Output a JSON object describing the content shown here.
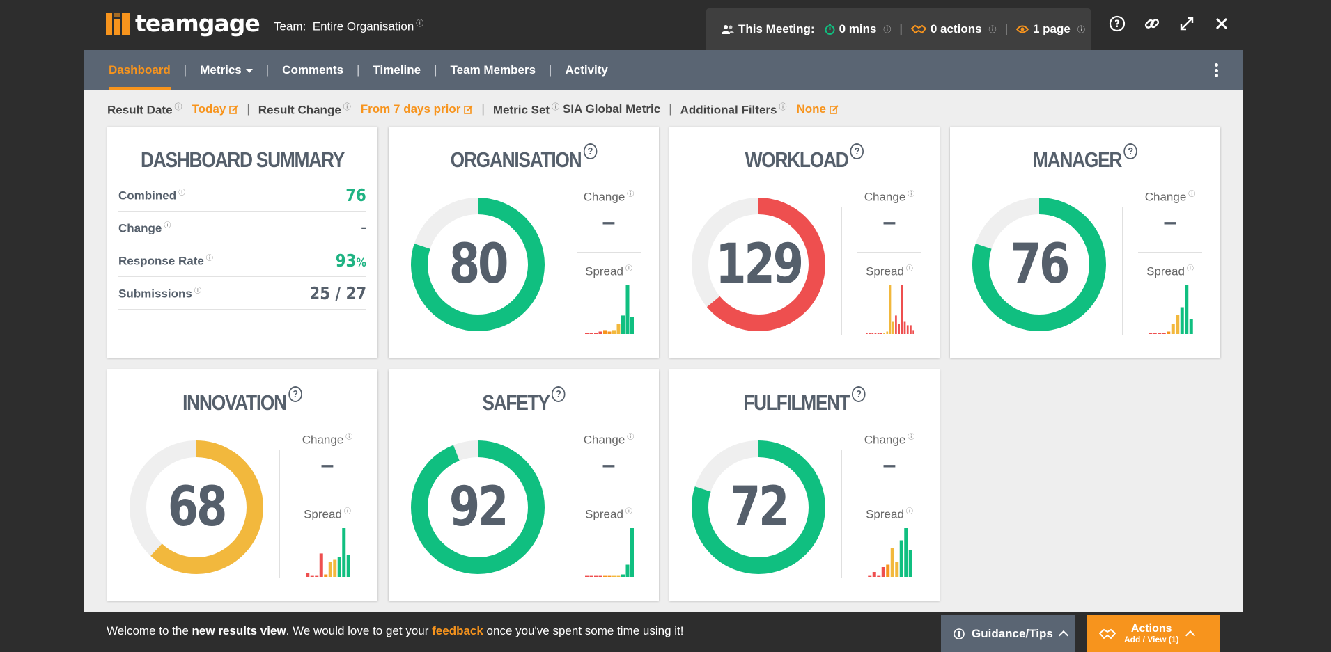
{
  "brand": {
    "name": "teamgage"
  },
  "header": {
    "team_label": "Team:",
    "team_value": "Entire Organisation",
    "meeting": {
      "label": "This Meeting:",
      "mins": "0 mins",
      "actions": "0 actions",
      "pages": "1 page"
    }
  },
  "nav": {
    "items": [
      {
        "label": "Dashboard",
        "active": true
      },
      {
        "label": "Metrics",
        "dropdown": true
      },
      {
        "label": "Comments"
      },
      {
        "label": "Timeline"
      },
      {
        "label": "Team Members"
      },
      {
        "label": "Activity"
      }
    ]
  },
  "filters": {
    "result_date_label": "Result Date",
    "result_date_value": "Today",
    "result_change_label": "Result Change",
    "result_change_value": "From 7 days prior",
    "metric_set_label": "Metric Set",
    "metric_set_value": "SIA Global Metric",
    "additional_filters_label": "Additional Filters",
    "additional_filters_value": "None"
  },
  "summary": {
    "title": "DASHBOARD SUMMARY",
    "rows": [
      {
        "label": "Combined",
        "value": "76"
      },
      {
        "label": "Change",
        "value": "–"
      },
      {
        "label": "Response Rate",
        "value": "93",
        "unit": "%"
      },
      {
        "label": "Submissions",
        "value": "25 / 27"
      }
    ]
  },
  "labels": {
    "change": "Change",
    "spread": "Spread",
    "help": "?"
  },
  "colors": {
    "green": "#10bf80",
    "red": "#ee4f4f",
    "yellow": "#f2b83d",
    "orange": "#f7941d",
    "track": "#efefef"
  },
  "metrics": [
    {
      "title": "ORGANISATION",
      "score": "80",
      "fraction": 0.8,
      "color": "#10bf80",
      "change": "–",
      "spread": [
        0.02,
        0.02,
        0.02,
        0.05,
        0.08,
        0.05,
        0.08,
        0.2,
        0.38,
        1.0,
        0.35
      ]
    },
    {
      "title": "WORKLOAD",
      "score": "129",
      "fraction": 0.64,
      "color": "#ee4f4f",
      "change": "–",
      "spread": [
        0.02,
        0.02,
        0.02,
        0.02,
        0.02,
        0.02,
        0.02,
        0.05,
        1.0,
        0.25,
        0.38,
        0.2,
        1.0,
        0.25,
        0.18,
        0.18,
        0.08
      ]
    },
    {
      "title": "MANAGER",
      "score": "76",
      "fraction": 0.8,
      "color": "#10bf80",
      "change": "–",
      "spread": [
        0.02,
        0.02,
        0.02,
        0.02,
        0.05,
        0.2,
        0.4,
        0.55,
        1.0,
        0.3
      ]
    },
    {
      "title": "INNOVATION",
      "score": "68",
      "fraction": 0.62,
      "color": "#f2b83d",
      "change": "–",
      "spread": [
        0.08,
        0.02,
        0.02,
        0.48,
        0.05,
        0.3,
        0.35,
        0.4,
        1.0,
        0.45
      ]
    },
    {
      "title": "SAFETY",
      "score": "92",
      "fraction": 0.94,
      "color": "#10bf80",
      "change": "–",
      "spread": [
        0.02,
        0.02,
        0.02,
        0.02,
        0.02,
        0.02,
        0.02,
        0.02,
        0.05,
        0.25,
        1.0
      ]
    },
    {
      "title": "FULFILMENT",
      "score": "72",
      "fraction": 0.8,
      "color": "#10bf80",
      "change": "–",
      "spread": [
        0.02,
        0.1,
        0.02,
        0.2,
        0.25,
        0.6,
        0.3,
        0.75,
        1.0,
        0.55
      ]
    }
  ],
  "footer": {
    "welcome_pre": "Welcome to the ",
    "welcome_bold": "new results view",
    "welcome_mid": ". We would love to get your ",
    "welcome_link": "feedback",
    "welcome_post": " once you've spent some time using it!",
    "guidance": "Guidance/Tips",
    "actions_title": "Actions",
    "actions_sub": "Add / View (1)"
  }
}
